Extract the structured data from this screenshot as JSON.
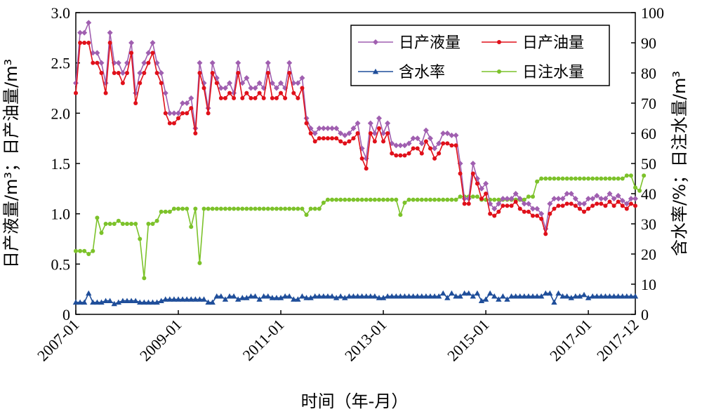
{
  "chart_data": {
    "type": "line",
    "xlabel": "时间（年-月）",
    "ylabel_left": "日产液量/m³；日产油量/m³",
    "ylabel_right": "含水率/%；日注水量/m³",
    "ylim_left": [
      0,
      3.0
    ],
    "ylim_right": [
      0,
      100
    ],
    "yticks_left": [
      "0",
      "0.5",
      "1.0",
      "1.5",
      "2.0",
      "2.5",
      "3.0"
    ],
    "yticks_right": [
      "0",
      "10",
      "20",
      "30",
      "40",
      "50",
      "60",
      "70",
      "80",
      "90",
      "100"
    ],
    "xticks": [
      {
        "label": "2007-01",
        "month": 0
      },
      {
        "label": "2009-01",
        "month": 24
      },
      {
        "label": "2011-01",
        "month": 48
      },
      {
        "label": "2013-01",
        "month": 72
      },
      {
        "label": "2015-01",
        "month": 96
      },
      {
        "label": "2017-01",
        "month": 120
      },
      {
        "label": "2017-12",
        "month": 131
      }
    ],
    "legend_position": "top-right",
    "series": [
      {
        "name": "日产液量",
        "axis": "left",
        "color": "#a05fb0",
        "marker": "diamond",
        "values": [
          2.3,
          2.8,
          2.8,
          2.9,
          2.6,
          2.6,
          2.5,
          2.3,
          2.8,
          2.5,
          2.5,
          2.4,
          2.5,
          2.7,
          2.2,
          2.4,
          2.5,
          2.6,
          2.7,
          2.5,
          2.4,
          2.2,
          2.0,
          2.0,
          2.0,
          2.1,
          2.1,
          2.15,
          1.85,
          2.5,
          2.3,
          2.05,
          2.5,
          2.35,
          2.25,
          2.25,
          2.3,
          2.2,
          2.5,
          2.3,
          2.35,
          2.25,
          2.25,
          2.3,
          2.25,
          2.5,
          2.3,
          2.25,
          2.3,
          2.25,
          2.5,
          2.3,
          2.3,
          2.35,
          1.95,
          1.85,
          1.8,
          1.85,
          1.85,
          1.85,
          1.85,
          1.85,
          1.8,
          1.78,
          1.8,
          1.85,
          1.9,
          1.65,
          1.55,
          1.9,
          1.8,
          1.95,
          1.8,
          1.9,
          1.7,
          1.68,
          1.68,
          1.68,
          1.7,
          1.75,
          1.75,
          1.7,
          1.83,
          1.75,
          1.65,
          1.7,
          1.8,
          1.8,
          1.78,
          1.78,
          1.5,
          1.15,
          1.15,
          1.5,
          1.35,
          1.25,
          1.3,
          1.1,
          1.05,
          1.1,
          1.15,
          1.15,
          1.15,
          1.2,
          1.15,
          1.1,
          1.1,
          1.05,
          1.05,
          1.0,
          0.85,
          1.1,
          1.15,
          1.15,
          1.15,
          1.2,
          1.2,
          1.15,
          1.1,
          1.1,
          1.15,
          1.15,
          1.18,
          1.15,
          1.15,
          1.2,
          1.15,
          1.18,
          1.13,
          1.1,
          1.15,
          1.15
        ]
      },
      {
        "name": "日产油量",
        "axis": "left",
        "color": "#e0101a",
        "marker": "circle",
        "values": [
          2.2,
          2.7,
          2.7,
          2.7,
          2.5,
          2.5,
          2.4,
          2.2,
          2.7,
          2.4,
          2.4,
          2.3,
          2.4,
          2.6,
          2.1,
          2.3,
          2.4,
          2.5,
          2.6,
          2.4,
          2.3,
          2.0,
          1.9,
          1.9,
          1.95,
          2.0,
          2.0,
          2.05,
          1.8,
          2.4,
          2.25,
          2.0,
          2.4,
          2.3,
          2.15,
          2.15,
          2.2,
          2.15,
          2.4,
          2.15,
          2.2,
          2.15,
          2.15,
          2.2,
          2.15,
          2.4,
          2.15,
          2.15,
          2.2,
          2.15,
          2.4,
          2.2,
          2.15,
          2.25,
          1.9,
          1.8,
          1.72,
          1.75,
          1.75,
          1.75,
          1.75,
          1.75,
          1.72,
          1.7,
          1.72,
          1.75,
          1.8,
          1.55,
          1.45,
          1.8,
          1.72,
          1.85,
          1.72,
          1.8,
          1.6,
          1.58,
          1.58,
          1.58,
          1.6,
          1.65,
          1.65,
          1.6,
          1.72,
          1.65,
          1.55,
          1.6,
          1.7,
          1.7,
          1.68,
          1.68,
          1.4,
          1.1,
          1.1,
          1.4,
          1.3,
          1.15,
          1.2,
          1.0,
          0.98,
          1.02,
          1.08,
          1.08,
          1.08,
          1.12,
          1.05,
          1.02,
          1.02,
          0.98,
          0.98,
          0.95,
          0.8,
          1.0,
          1.05,
          1.08,
          1.08,
          1.1,
          1.1,
          1.08,
          1.05,
          1.02,
          1.05,
          1.08,
          1.1,
          1.1,
          1.08,
          1.12,
          1.08,
          1.12,
          1.08,
          1.05,
          1.1,
          1.08
        ]
      },
      {
        "name": "含水率",
        "axis": "right",
        "color": "#1f4e9a",
        "marker": "triangle",
        "values": [
          4,
          4,
          4,
          7,
          4,
          4,
          4,
          4.5,
          4.5,
          3.5,
          4,
          4.5,
          4.5,
          4.5,
          4.5,
          4,
          4,
          4,
          4,
          4,
          4.5,
          5,
          5,
          5,
          5,
          5,
          5,
          5,
          5,
          5,
          5,
          4,
          4,
          6,
          6,
          5,
          6,
          6,
          5,
          5.5,
          5.5,
          6,
          6,
          5,
          6,
          6,
          5.5,
          5.5,
          5.5,
          6,
          6,
          5,
          5,
          6,
          5.5,
          5.5,
          6,
          6,
          6,
          6,
          6,
          5.5,
          6,
          5.5,
          6,
          6,
          6,
          6,
          6,
          6,
          6,
          5.5,
          5.5,
          6,
          6,
          6,
          6,
          6,
          6,
          6,
          6,
          6,
          6,
          6,
          6,
          6,
          7,
          5.5,
          7,
          6,
          6,
          7,
          7,
          6,
          7,
          4.5,
          5,
          7,
          6,
          5,
          6,
          5,
          6,
          6,
          6,
          6,
          6,
          6,
          6,
          6,
          7,
          7,
          4,
          7,
          6,
          6,
          5.5,
          6,
          6,
          6.5,
          5.5,
          6,
          6,
          6,
          6,
          6,
          6,
          6,
          6,
          6,
          6,
          6
        ]
      },
      {
        "name": "日注水量",
        "axis": "right",
        "color": "#7cc22a",
        "marker": "circle",
        "values": [
          21,
          21,
          21,
          20,
          21,
          32,
          27,
          30,
          30,
          30,
          31,
          30,
          30,
          30,
          30,
          25,
          12,
          30,
          30,
          31,
          34,
          34,
          34,
          35,
          35,
          35,
          35,
          29,
          35,
          17,
          35,
          35,
          35,
          35,
          35,
          35,
          35,
          35,
          35,
          35,
          35,
          35,
          35,
          35,
          35,
          35,
          35,
          35,
          35,
          35,
          35,
          35,
          35,
          35,
          33,
          35,
          35,
          35,
          37,
          38,
          38,
          38,
          38,
          38,
          38,
          38,
          38,
          38,
          38,
          38,
          38,
          38,
          38,
          38,
          38,
          38,
          33,
          37,
          38,
          38,
          38,
          38,
          38,
          38,
          38,
          38,
          38,
          38,
          38,
          38,
          39,
          39,
          39,
          39,
          39,
          38,
          38,
          38,
          38,
          38,
          38,
          38,
          38,
          38,
          38,
          38,
          39,
          39,
          44,
          45,
          45,
          45,
          45,
          45,
          45,
          45,
          45,
          45,
          45,
          45,
          45,
          45,
          45,
          45,
          45,
          45,
          45,
          45,
          45,
          46,
          46,
          42,
          41,
          46
        ]
      }
    ]
  }
}
